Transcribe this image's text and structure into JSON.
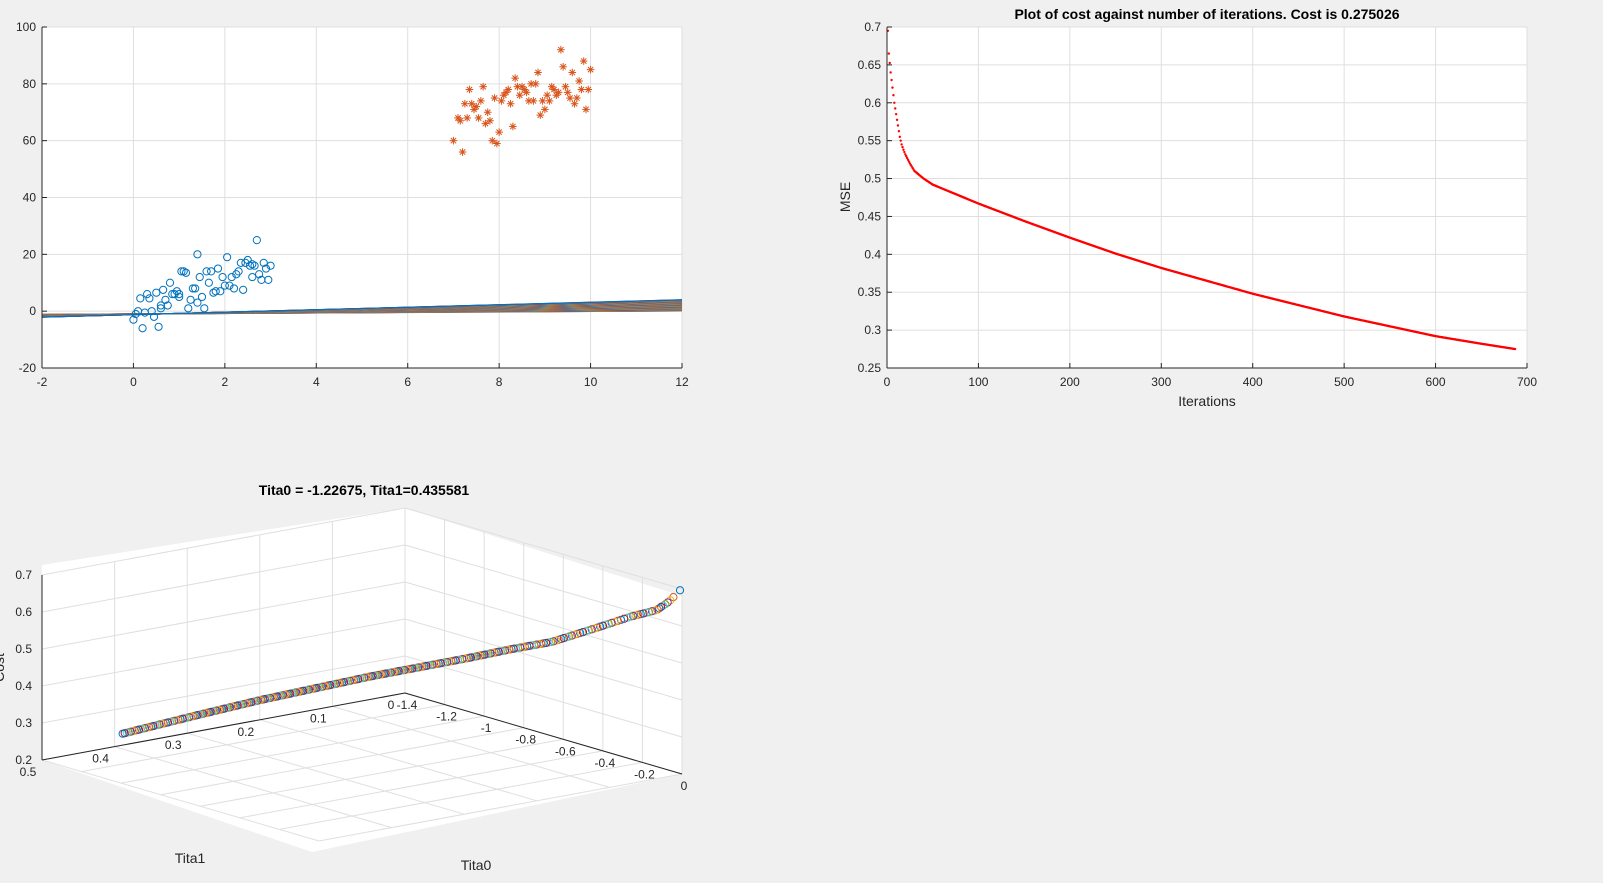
{
  "figure": {
    "background": "#f0f0f0",
    "axes_color": "#262626",
    "grid_color": "#dfdfdf"
  },
  "chart_data": [
    {
      "id": "data-scatter",
      "type": "scatter",
      "title": "",
      "xlabel": "",
      "ylabel": "",
      "xlim": [
        -2,
        12
      ],
      "ylim": [
        -20,
        100
      ],
      "xticks": [
        "-2",
        "0",
        "2",
        "4",
        "6",
        "8",
        "10",
        "12"
      ],
      "yticks": [
        "-20",
        "0",
        "20",
        "40",
        "60",
        "80",
        "100"
      ],
      "grid": true,
      "series": [
        {
          "marker": "circle",
          "color": "#0072bd",
          "x": [
            0.0,
            0.05,
            0.1,
            0.15,
            0.2,
            0.3,
            0.35,
            0.4,
            0.45,
            0.5,
            0.55,
            0.6,
            0.65,
            0.7,
            0.75,
            0.8,
            0.85,
            0.9,
            0.95,
            1.0,
            1.05,
            1.1,
            1.15,
            1.2,
            1.25,
            1.3,
            1.35,
            1.4,
            1.45,
            1.5,
            1.55,
            1.6,
            1.65,
            1.7,
            1.75,
            1.8,
            1.85,
            1.9,
            1.95,
            2.0,
            2.05,
            2.1,
            2.15,
            2.2,
            2.25,
            2.3,
            2.35,
            2.4,
            2.45,
            2.5,
            2.55,
            2.6,
            2.65,
            2.7,
            2.75,
            2.8,
            2.85,
            2.9,
            2.95,
            3.0,
            0.25,
            0.6,
            1.0,
            1.4,
            2.6
          ],
          "y": [
            -3,
            -1,
            0,
            4.5,
            -6,
            6,
            4.5,
            0,
            -2,
            6.5,
            -5.5,
            2,
            7.5,
            4,
            2,
            10,
            6,
            6,
            7,
            5,
            14,
            14,
            13.5,
            1,
            4,
            8,
            8,
            20,
            12,
            5,
            1,
            14,
            10,
            14,
            6.5,
            7,
            15,
            7,
            12,
            9,
            19,
            9,
            12,
            8,
            13,
            14,
            17,
            7.5,
            17,
            18,
            16,
            12,
            16,
            25,
            13,
            11,
            17,
            15,
            11,
            16,
            -0.5,
            1,
            6,
            3,
            16.5
          ]
        },
        {
          "marker": "asterisk",
          "color": "#d95319",
          "x": [
            7.0,
            7.1,
            7.15,
            7.2,
            7.25,
            7.3,
            7.35,
            7.4,
            7.45,
            7.5,
            7.55,
            7.6,
            7.65,
            7.7,
            7.75,
            7.8,
            7.85,
            7.9,
            7.95,
            8.0,
            8.05,
            8.1,
            8.15,
            8.2,
            8.25,
            8.3,
            8.35,
            8.4,
            8.45,
            8.5,
            8.55,
            8.6,
            8.65,
            8.7,
            8.75,
            8.8,
            8.85,
            8.9,
            8.95,
            9.0,
            9.05,
            9.1,
            9.15,
            9.2,
            9.25,
            9.3,
            9.35,
            9.4,
            9.45,
            9.5,
            9.55,
            9.6,
            9.65,
            9.7,
            9.75,
            9.8,
            9.85,
            9.9,
            9.95,
            10.0
          ],
          "y": [
            60,
            68,
            67,
            56,
            73,
            68,
            78,
            73,
            71,
            72,
            68,
            74,
            79,
            66,
            70,
            67,
            60,
            75,
            59,
            63,
            74,
            76,
            77,
            78,
            73,
            65,
            82,
            79,
            76,
            79,
            78,
            77,
            74,
            80,
            74,
            80,
            84,
            69,
            74,
            71,
            76,
            74,
            79,
            78,
            76,
            77,
            92,
            86,
            79,
            77,
            75,
            84,
            73,
            75,
            81,
            78,
            88,
            71,
            78,
            85
          ]
        }
      ],
      "line_band": {
        "colors": [
          "#0072bd",
          "#d95319",
          "#edb120",
          "#7e2f8e",
          "#77ac30",
          "#4dbeee",
          "#a2142f"
        ],
        "intercept_range": [
          -0.98,
          -1.227
        ],
        "slope_range": [
          0.088,
          0.436
        ],
        "x": [
          -2,
          12
        ]
      }
    },
    {
      "id": "cost-plot",
      "type": "scatter",
      "title": "Plot of cost against number of iterations. Cost is 0.275026",
      "xlabel": "Iterations",
      "ylabel": "MSE",
      "xlim": [
        0,
        700
      ],
      "ylim": [
        0.25,
        0.7
      ],
      "xticks": [
        "0",
        "100",
        "200",
        "300",
        "400",
        "500",
        "600",
        "700"
      ],
      "yticks": [
        "0.25",
        "0.3",
        "0.35",
        "0.4",
        "0.45",
        "0.5",
        "0.55",
        "0.6",
        "0.65",
        "0.7"
      ],
      "grid": true,
      "series": [
        {
          "marker": "dot",
          "color": "#ff0000",
          "x": [
            1,
            2,
            4,
            6,
            8,
            10,
            12,
            14,
            16,
            18,
            20,
            25,
            30,
            40,
            50,
            60,
            80,
            100,
            150,
            200,
            250,
            300,
            350,
            400,
            450,
            500,
            550,
            600,
            650,
            687
          ],
          "y": [
            0.695,
            0.665,
            0.64,
            0.62,
            0.6,
            0.585,
            0.57,
            0.555,
            0.545,
            0.538,
            0.532,
            0.52,
            0.51,
            0.5,
            0.492,
            0.487,
            0.477,
            0.467,
            0.444,
            0.422,
            0.401,
            0.382,
            0.365,
            0.348,
            0.333,
            0.318,
            0.305,
            0.292,
            0.282,
            0.275
          ]
        }
      ]
    },
    {
      "id": "surface-3d",
      "type": "scatter",
      "title": "Tita0 = -1.22675, Tita1=0.435581",
      "xlabel": "Tita0",
      "ylabel": "Tita1",
      "zlabel": "Cost",
      "xlim": [
        -1.4,
        0
      ],
      "ylim": [
        0,
        0.5
      ],
      "zlim": [
        0.2,
        0.7
      ],
      "xticks": [
        "-1.4",
        "-1.2",
        "-1",
        "-0.8",
        "-0.6",
        "-0.4",
        "-0.2",
        "0"
      ],
      "yticks": [
        "0",
        "0.1",
        "0.2",
        "0.3",
        "0.4",
        "0.5"
      ],
      "zticks": [
        "0.2",
        "0.3",
        "0.4",
        "0.5",
        "0.6",
        "0.7"
      ],
      "grid": true,
      "series": [
        {
          "marker": "circle",
          "colors": [
            "#0072bd",
            "#d95319",
            "#edb120",
            "#7e2f8e",
            "#77ac30",
            "#4dbeee",
            "#a2142f"
          ],
          "tita0": [
            -0.01,
            -0.05,
            -0.1,
            -0.2,
            -0.3,
            -0.4,
            -0.5,
            -0.6,
            -0.7,
            -0.8,
            -0.9,
            -1.0,
            -1.1,
            -1.227
          ],
          "tita1": [
            0.0,
            0.004,
            0.008,
            0.016,
            0.04,
            0.07,
            0.1,
            0.13,
            0.17,
            0.21,
            0.26,
            0.31,
            0.37,
            0.436
          ],
          "cost": [
            0.695,
            0.66,
            0.63,
            0.6,
            0.56,
            0.52,
            0.495,
            0.467,
            0.441,
            0.415,
            0.385,
            0.355,
            0.32,
            0.275
          ]
        }
      ]
    }
  ]
}
